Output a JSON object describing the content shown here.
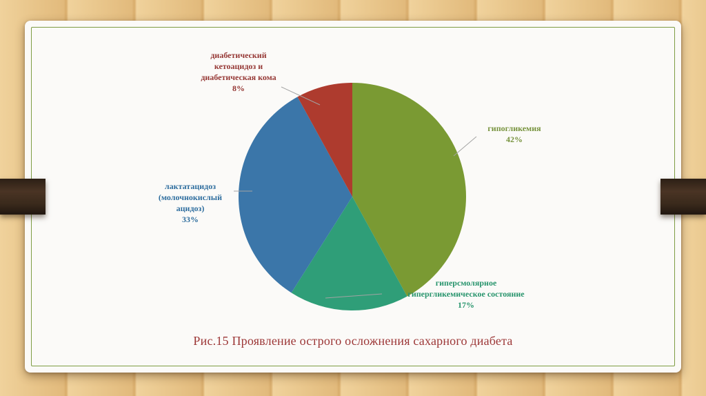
{
  "slide": {
    "caption": "Рис.15 Проявление острого осложнения сахарного диабета"
  },
  "theme": {
    "wood_background": "#e9c48a",
    "card_background": "#fbfaf8",
    "card_border": "#7d9c42",
    "clip_color": "#3a2a1c",
    "leader_line_color": "#a3a3a3",
    "caption_color": "#9c3636"
  },
  "chart_data": {
    "type": "pie",
    "title": "Проявление острого осложнения сахарного диабета",
    "unit": "%",
    "start_angle_deg": -90,
    "direction": "clockwise",
    "legend_position": "none",
    "labels_outside": true,
    "categories": [
      "гипогликемия",
      "гиперсмолярное гипергликемическое состояние",
      "лактатацидоз (молочнокислый ацидоз)",
      "диабетический кетоацидоз и диабетическая кома"
    ],
    "values": [
      42,
      17,
      33,
      8
    ],
    "slices": [
      {
        "id": "hypoglycemia",
        "label": "гипогликемия",
        "label_lines": [
          "гипогликемия"
        ],
        "value": 42,
        "pct_label": "42%",
        "color": "#7a9a33",
        "text_color": "#76923c"
      },
      {
        "id": "hyperosmolar-hyperglycemic-state",
        "label": "гиперсмолярное гипергликемическое состояние",
        "label_lines": [
          "гиперсмолярное",
          "гипергликемическое состояние"
        ],
        "value": 17,
        "pct_label": "17%",
        "color": "#2f9e78",
        "text_color": "#27946c"
      },
      {
        "id": "lactic-acidosis",
        "label": "лактатацидоз (молочнокислый ацидоз)",
        "label_lines": [
          "лактатацидоз",
          "(молочнокислый",
          "ацидоз)"
        ],
        "value": 33,
        "pct_label": "33%",
        "color": "#3b76a9",
        "text_color": "#2e6d9e"
      },
      {
        "id": "diabetic-ketoacidosis-coma",
        "label": "диабетический кетоацидоз и диабетическая кома",
        "label_lines": [
          "диабетический",
          "кетоацидоз и",
          "диабетическая кома"
        ],
        "value": 8,
        "pct_label": "8%",
        "color": "#ae3b2e",
        "text_color": "#953734"
      }
    ]
  }
}
